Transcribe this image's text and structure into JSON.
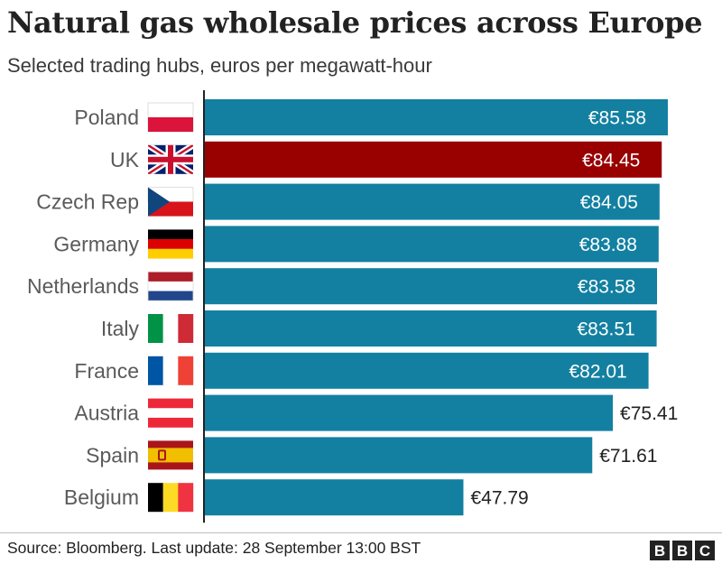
{
  "header": {
    "title": "Natural gas wholesale prices across Europe",
    "subtitle": "Selected trading hubs, euros per megawatt-hour"
  },
  "footer": {
    "source": "Source: Bloomberg. Last update: 28 September 13:00 BST",
    "logo": [
      "B",
      "B",
      "C"
    ]
  },
  "colors": {
    "bar_default": "#1380a1",
    "bar_highlight": "#990000",
    "label_inside": "#ffffff",
    "label_outside": "#222222",
    "category_text": "#5a5a5a"
  },
  "chart_data": {
    "type": "bar",
    "orientation": "horizontal",
    "title": "Natural gas wholesale prices across Europe",
    "subtitle": "Selected trading hubs, euros per megawatt-hour",
    "categories": [
      "Poland",
      "UK",
      "Czech Rep",
      "Germany",
      "Netherlands",
      "Italy",
      "France",
      "Austria",
      "Spain",
      "Belgium"
    ],
    "values": [
      85.58,
      84.45,
      84.05,
      83.88,
      83.58,
      83.51,
      82.01,
      75.41,
      71.61,
      47.79
    ],
    "value_labels": [
      "€85.58",
      "€84.45",
      "€84.05",
      "€83.88",
      "€83.58",
      "€83.51",
      "€82.01",
      "€75.41",
      "€71.61",
      "€47.79"
    ],
    "highlight": "UK",
    "flags": [
      "poland-flag",
      "uk-flag",
      "czech-flag",
      "germany-flag",
      "netherlands-flag",
      "italy-flag",
      "france-flag",
      "austria-flag",
      "spain-flag",
      "belgium-flag"
    ],
    "xlim": [
      0,
      85.58
    ],
    "grid": false,
    "legend": "none"
  }
}
